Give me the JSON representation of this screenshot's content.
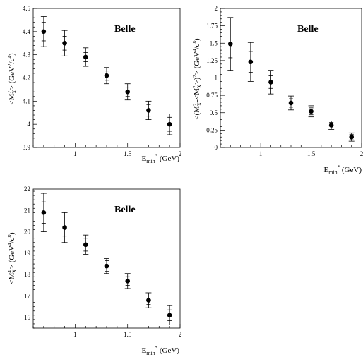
{
  "chart_data": [
    {
      "type": "scatter",
      "title": "Belle",
      "xlabel": "E_min* (GeV)",
      "ylabel": "<M_X^2> (GeV^2/c^4)",
      "xlim": [
        0.6,
        2.0
      ],
      "ylim": [
        3.9,
        4.5
      ],
      "x_ticks": [
        "1",
        "1.5",
        "2"
      ],
      "y_ticks": [
        "3.9",
        "4",
        "4.1",
        "4.2",
        "4.3",
        "4.4",
        "4.5"
      ],
      "x": [
        0.7,
        0.9,
        1.1,
        1.3,
        1.5,
        1.7,
        1.9
      ],
      "values": [
        4.4,
        4.35,
        4.29,
        4.21,
        4.14,
        4.06,
        4.0
      ],
      "err_stat": [
        0.04,
        0.03,
        0.02,
        0.02,
        0.02,
        0.025,
        0.03
      ],
      "err_total": [
        0.065,
        0.055,
        0.04,
        0.035,
        0.035,
        0.04,
        0.045
      ]
    },
    {
      "type": "scatter",
      "title": "Belle",
      "xlabel": "E_min* (GeV)",
      "ylabel": "<(M_X^2-<M_X^2>)^2> (GeV^4/c^8)",
      "xlim": [
        0.6,
        2.0
      ],
      "ylim": [
        0,
        2.0
      ],
      "x_ticks": [
        "1",
        "1.5",
        "2"
      ],
      "y_ticks": [
        "0",
        "0.25",
        "0.5",
        "0.75",
        "1",
        "1.25",
        "1.5",
        "1.75",
        "2"
      ],
      "x": [
        0.7,
        0.9,
        1.1,
        1.3,
        1.5,
        1.7,
        1.9
      ],
      "values": [
        1.49,
        1.23,
        0.94,
        0.64,
        0.52,
        0.32,
        0.15
      ],
      "err_stat": [
        0.2,
        0.15,
        0.09,
        0.06,
        0.05,
        0.04,
        0.04
      ],
      "err_total": [
        0.38,
        0.28,
        0.17,
        0.1,
        0.08,
        0.06,
        0.06
      ]
    },
    {
      "type": "scatter",
      "title": "Belle",
      "xlabel": "E_min* (GeV)",
      "ylabel": "<M_X^4> (GeV^4/c^8)",
      "xlim": [
        0.6,
        2.0
      ],
      "ylim": [
        15.5,
        22.0
      ],
      "x_ticks": [
        "1",
        "1.5",
        "2"
      ],
      "y_ticks": [
        "16",
        "17",
        "18",
        "19",
        "20",
        "21",
        "22"
      ],
      "x": [
        0.7,
        0.9,
        1.1,
        1.3,
        1.5,
        1.7,
        1.9
      ],
      "values": [
        20.9,
        20.2,
        19.4,
        18.4,
        17.7,
        16.8,
        16.1
      ],
      "err_stat": [
        0.5,
        0.4,
        0.3,
        0.25,
        0.2,
        0.2,
        0.25
      ],
      "err_total": [
        0.9,
        0.7,
        0.45,
        0.35,
        0.35,
        0.35,
        0.45
      ]
    }
  ]
}
